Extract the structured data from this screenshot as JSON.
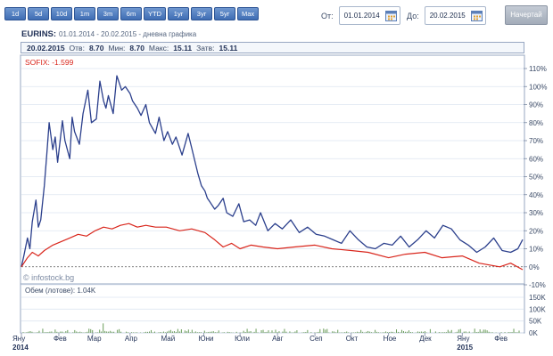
{
  "range_buttons": [
    "1d",
    "5d",
    "10d",
    "1m",
    "3m",
    "6m",
    "YTD",
    "1yr",
    "3yr",
    "5yr",
    "Max"
  ],
  "date_from": {
    "label": "От:",
    "value": "01.01.2014"
  },
  "date_to": {
    "label": "До:",
    "value": "20.02.2015"
  },
  "draw_button": "Начертай",
  "header": {
    "ticker": "EURINS:",
    "subtitle": "01.01.2014 - 20.02.2015 - дневна графика"
  },
  "stats": {
    "date": "20.02.2015",
    "open_label": "Отв:",
    "open": "8.70",
    "min_label": "Мин:",
    "min": "8.70",
    "max_label": "Макс:",
    "max": "15.11",
    "close_label": "Затв:",
    "close": "15.11"
  },
  "price_panel": {
    "comparison_label": "SOFIX: -1.599",
    "watermark": "© infostock.bg"
  },
  "volume_panel": {
    "label": "Обем (лотове): 1.04K"
  },
  "colors": {
    "eurins": "#2b3f8c",
    "sofix": "#d9261c",
    "accent": "#3f6db4"
  },
  "chart_data": {
    "type": "line",
    "x_tick_labels": [
      "Яну\n2014",
      "Фев",
      "Мар",
      "Апр",
      "Май",
      "Юни",
      "Юли",
      "Авг",
      "Сеп",
      "Окт",
      "Ное",
      "Дек",
      "Яну\n2015",
      "Фев"
    ],
    "y_tick_labels": [
      "110%",
      "100%",
      "90%",
      "80%",
      "70%",
      "60%",
      "50%",
      "40%",
      "30%",
      "20%",
      "10%",
      "0%",
      "-10%"
    ],
    "ylim": [
      -10,
      110
    ],
    "volume_tick_labels": [
      "150K",
      "100K",
      "50K",
      "0K"
    ],
    "volume_ylim": [
      0,
      150
    ],
    "x_domain": [
      "2014-01-01",
      "2015-02-20"
    ],
    "series": [
      {
        "name": "EURINS",
        "x": [
          "2014-01-01",
          "2014-01-03",
          "2014-01-06",
          "2014-01-08",
          "2014-01-10",
          "2014-01-13",
          "2014-01-15",
          "2014-01-17",
          "2014-01-20",
          "2014-01-22",
          "2014-01-24",
          "2014-01-27",
          "2014-01-29",
          "2014-01-31",
          "2014-02-04",
          "2014-02-06",
          "2014-02-10",
          "2014-02-12",
          "2014-02-14",
          "2014-02-18",
          "2014-02-21",
          "2014-02-25",
          "2014-02-28",
          "2014-03-04",
          "2014-03-07",
          "2014-03-10",
          "2014-03-12",
          "2014-03-14",
          "2014-03-18",
          "2014-03-21",
          "2014-03-25",
          "2014-03-28",
          "2014-04-01",
          "2014-04-03",
          "2014-04-07",
          "2014-04-10",
          "2014-04-14",
          "2014-04-17",
          "2014-04-22",
          "2014-04-25",
          "2014-04-29",
          "2014-05-02",
          "2014-05-06",
          "2014-05-09",
          "2014-05-14",
          "2014-05-19",
          "2014-05-22",
          "2014-05-27",
          "2014-05-30",
          "2014-06-02",
          "2014-06-04",
          "2014-06-06",
          "2014-06-10",
          "2014-06-13",
          "2014-06-17",
          "2014-06-20",
          "2014-06-25",
          "2014-06-30",
          "2014-07-04",
          "2014-07-09",
          "2014-07-14",
          "2014-07-18",
          "2014-07-24",
          "2014-07-30",
          "2014-08-05",
          "2014-08-12",
          "2014-08-19",
          "2014-08-26",
          "2014-09-02",
          "2014-09-09",
          "2014-09-16",
          "2014-09-23",
          "2014-09-30",
          "2014-10-07",
          "2014-10-14",
          "2014-10-21",
          "2014-10-28",
          "2014-11-04",
          "2014-11-11",
          "2014-11-18",
          "2014-11-25",
          "2014-12-02",
          "2014-12-09",
          "2014-12-16",
          "2014-12-23",
          "2014-12-30",
          "2015-01-06",
          "2015-01-13",
          "2015-01-20",
          "2015-01-27",
          "2015-02-03",
          "2015-02-10",
          "2015-02-16",
          "2015-02-20"
        ],
        "y": [
          0,
          6,
          16,
          10,
          25,
          37,
          22,
          26,
          45,
          62,
          80,
          65,
          72,
          58,
          81,
          70,
          60,
          83,
          75,
          68,
          85,
          98,
          80,
          82,
          103,
          92,
          88,
          95,
          85,
          106,
          98,
          100,
          96,
          92,
          88,
          84,
          90,
          80,
          74,
          83,
          70,
          75,
          68,
          72,
          62,
          74,
          66,
          52,
          45,
          42,
          38,
          36,
          32,
          34,
          38,
          30,
          28,
          35,
          25,
          26,
          23,
          30,
          20,
          24,
          21,
          26,
          19,
          22,
          18,
          17,
          15,
          13,
          20,
          15,
          11,
          10,
          13,
          12,
          17,
          11,
          15,
          20,
          16,
          23,
          21,
          15,
          12,
          8,
          11,
          16,
          9,
          8,
          10,
          15.11
        ]
      },
      {
        "name": "SOFIX",
        "x": [
          "2014-01-01",
          "2014-01-06",
          "2014-01-10",
          "2014-01-15",
          "2014-01-20",
          "2014-01-27",
          "2014-02-03",
          "2014-02-10",
          "2014-02-17",
          "2014-02-24",
          "2014-03-03",
          "2014-03-10",
          "2014-03-17",
          "2014-03-24",
          "2014-03-31",
          "2014-04-07",
          "2014-04-14",
          "2014-04-22",
          "2014-05-01",
          "2014-05-12",
          "2014-05-22",
          "2014-06-02",
          "2014-06-10",
          "2014-06-17",
          "2014-06-24",
          "2014-07-01",
          "2014-07-10",
          "2014-07-20",
          "2014-08-01",
          "2014-08-15",
          "2014-09-01",
          "2014-09-15",
          "2014-10-01",
          "2014-10-15",
          "2014-11-01",
          "2014-11-15",
          "2014-12-01",
          "2014-12-15",
          "2015-01-01",
          "2015-01-15",
          "2015-02-01",
          "2015-02-10",
          "2015-02-20"
        ],
        "y": [
          0,
          5,
          8,
          6,
          9,
          12,
          14,
          16,
          18,
          17,
          20,
          22,
          21,
          23,
          24,
          22,
          23,
          22,
          22,
          20,
          21,
          19,
          15,
          11,
          13,
          10,
          12,
          11,
          10,
          11,
          12,
          10,
          9,
          8,
          5,
          7,
          8,
          5,
          6,
          2,
          0,
          2,
          -1.599
        ]
      }
    ],
    "volume_bar_count": 280
  }
}
